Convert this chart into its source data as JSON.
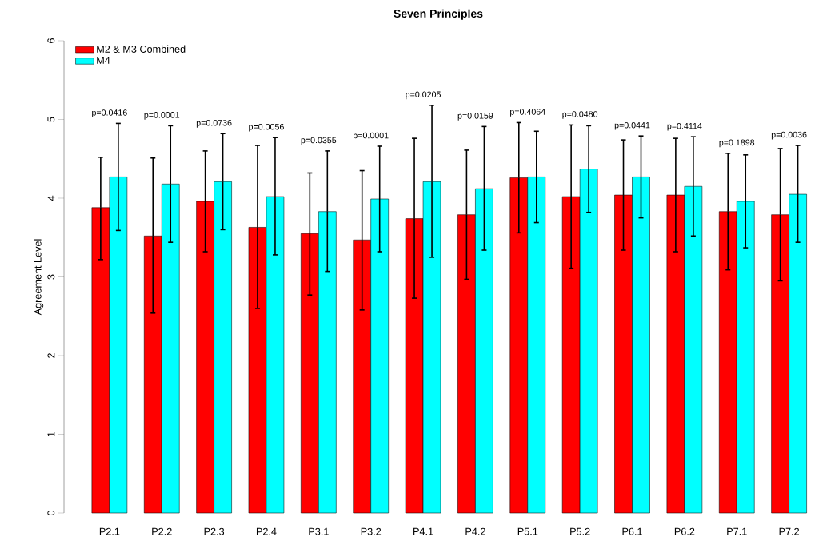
{
  "chart_data": {
    "type": "bar",
    "title": "Seven Principles",
    "ylabel": "Agreement Level",
    "categories": [
      "P2.1",
      "P2.2",
      "P2.3",
      "P2.4",
      "P3.1",
      "P3.2",
      "P4.1",
      "P4.2",
      "P5.1",
      "P5.2",
      "P6.1",
      "P6.2",
      "P7.1",
      "P7.2"
    ],
    "series": [
      {
        "name": "M2 & M3 Combined",
        "color": "#ff0000",
        "values": [
          3.88,
          3.52,
          3.96,
          3.63,
          3.55,
          3.47,
          3.74,
          3.79,
          4.26,
          4.02,
          4.04,
          4.04,
          3.83,
          3.79
        ],
        "errors": [
          [
            3.22,
            4.52
          ],
          [
            2.54,
            4.51
          ],
          [
            3.32,
            4.6
          ],
          [
            2.6,
            4.67
          ],
          [
            2.77,
            4.32
          ],
          [
            2.58,
            4.35
          ],
          [
            2.73,
            4.76
          ],
          [
            2.97,
            4.61
          ],
          [
            3.56,
            4.96
          ],
          [
            3.11,
            4.93
          ],
          [
            3.34,
            4.74
          ],
          [
            3.32,
            4.76
          ],
          [
            3.09,
            4.57
          ],
          [
            2.95,
            4.63
          ]
        ]
      },
      {
        "name": "M4",
        "color": "#00ffff",
        "values": [
          4.27,
          4.18,
          4.21,
          4.02,
          3.83,
          3.99,
          4.21,
          4.12,
          4.27,
          4.37,
          4.27,
          4.15,
          3.96,
          4.05
        ],
        "errors": [
          [
            3.59,
            4.95
          ],
          [
            3.44,
            4.92
          ],
          [
            3.6,
            4.82
          ],
          [
            3.28,
            4.77
          ],
          [
            3.07,
            4.6
          ],
          [
            3.32,
            4.66
          ],
          [
            3.25,
            5.18
          ],
          [
            3.34,
            4.91
          ],
          [
            3.69,
            4.85
          ],
          [
            3.82,
            4.92
          ],
          [
            3.75,
            4.79
          ],
          [
            3.52,
            4.78
          ],
          [
            3.37,
            4.55
          ],
          [
            3.44,
            4.67
          ]
        ]
      }
    ],
    "ylim": [
      0,
      6
    ],
    "yticks": [
      0,
      1,
      2,
      3,
      4,
      5,
      6
    ],
    "grid": false,
    "legend": "top left",
    "annotations": [
      "p=0.0416",
      "p=0.0001",
      "p=0.0736",
      "p=0.0056",
      "p=0.0355",
      "p=0.0001",
      "p=0.0205",
      "p=0.0159",
      "p=0.4064",
      "p=0.0480",
      "p=0.0441",
      "p=0.4114",
      "p=0.1898",
      "p=0.0036"
    ]
  }
}
